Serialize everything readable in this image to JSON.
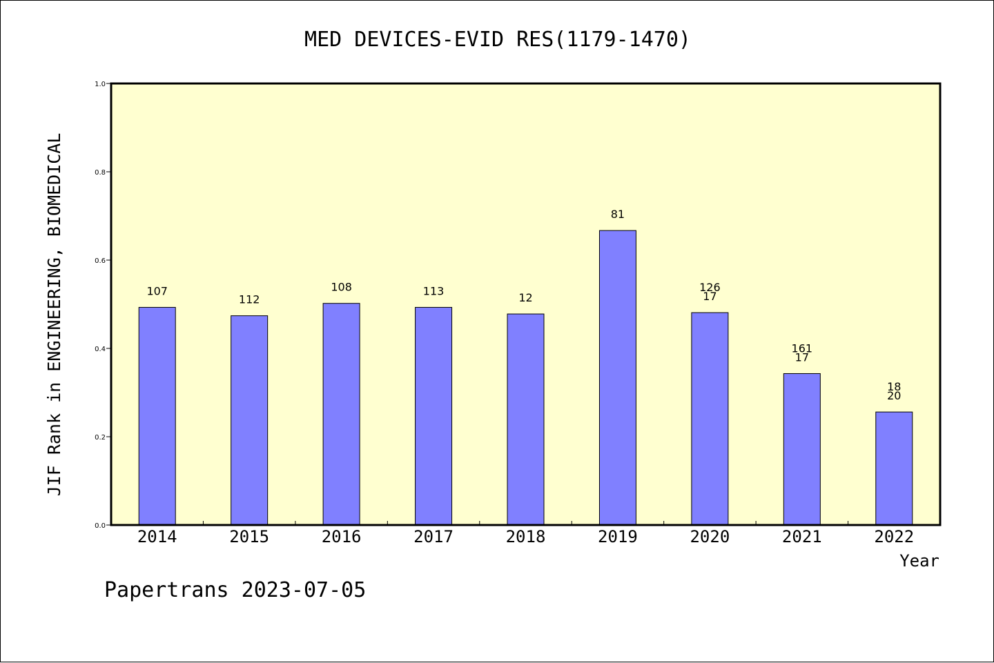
{
  "chart_data": {
    "type": "bar",
    "title": "MED DEVICES-EVID RES(1179-1470)",
    "xlabel": "Year",
    "ylabel": "JIF Rank in ENGINEERING, BIOMEDICAL",
    "ylim": [
      0,
      1.0
    ],
    "yticks": [
      "0.0",
      "0.2",
      "0.4",
      "0.6",
      "0.8",
      "1.0"
    ],
    "grid": false,
    "categories": [
      "2014",
      "2015",
      "2016",
      "2017",
      "2018",
      "2019",
      "2020",
      "2021",
      "2022"
    ],
    "values": [
      0.493,
      0.474,
      0.502,
      0.493,
      0.478,
      0.667,
      0.481,
      0.343,
      0.256
    ],
    "bar_labels": [
      [
        "107"
      ],
      [
        "112"
      ],
      [
        "108"
      ],
      [
        "113"
      ],
      [
        "12"
      ],
      [
        "81"
      ],
      [
        "126",
        "17"
      ],
      [
        "161",
        "17"
      ],
      [
        "18",
        "20"
      ]
    ],
    "colors": {
      "bar": "#8080ff",
      "plot_background": "#ffffd0"
    }
  },
  "footer": "Papertrans 2023-07-05"
}
